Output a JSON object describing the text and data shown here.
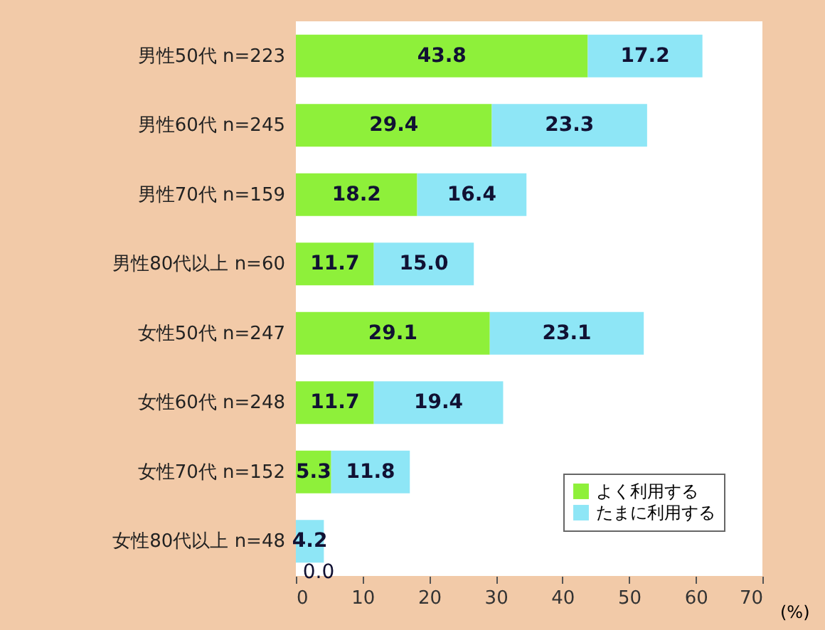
{
  "chart_data": {
    "type": "bar",
    "orientation": "horizontal",
    "stacked": true,
    "categories": [
      "男性50代 n=223",
      "男性60代 n=245",
      "男性70代 n=159",
      "男性80代以上 n=60",
      "女性50代 n=247",
      "女性60代 n=248",
      "女性70代 n=152",
      "女性80代以上 n=48"
    ],
    "series": [
      {
        "name": "よく利用する",
        "color": "#8ef03a",
        "values": [
          43.8,
          29.4,
          18.2,
          11.7,
          29.1,
          11.7,
          5.3,
          0.0
        ],
        "value_labels": [
          "43.8",
          "29.4",
          "18.2",
          "11.7",
          "29.1",
          "11.7",
          "5.3",
          "0.0"
        ]
      },
      {
        "name": "たまに利用する",
        "color": "#8ee6f6",
        "values": [
          17.2,
          23.3,
          16.4,
          15.0,
          23.1,
          19.4,
          11.8,
          4.2
        ],
        "value_labels": [
          "17.2",
          "23.3",
          "16.4",
          "15.0",
          "23.1",
          "19.4",
          "11.8",
          "4.2"
        ]
      }
    ],
    "xlim": [
      0,
      70
    ],
    "xticks": [
      0,
      10,
      20,
      30,
      40,
      50,
      60,
      70
    ],
    "xlabel": "(%)",
    "grid": false,
    "legend": "bottom right"
  }
}
